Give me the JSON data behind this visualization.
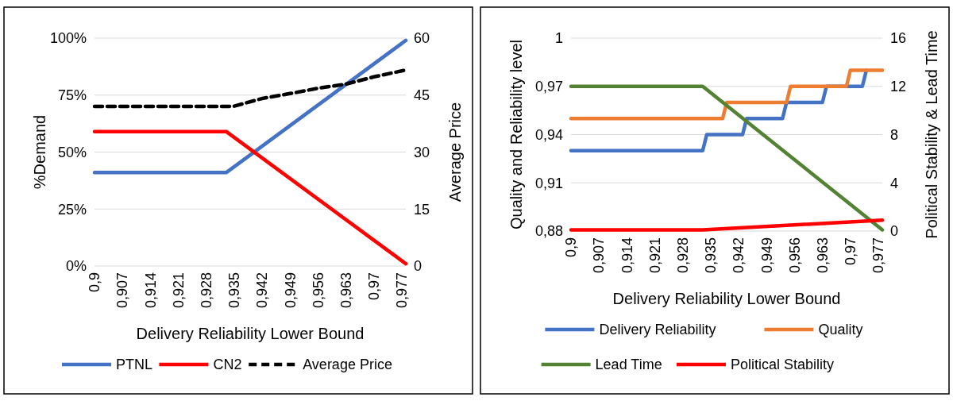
{
  "chart_data": [
    {
      "type": "line",
      "xlabel": "Delivery Reliability Lower Bound",
      "ylabel": "%Demand",
      "y2label": "Average Price",
      "xlim": [
        0.9,
        0.978
      ],
      "xticks": [
        {
          "value": 0.9,
          "label": "0,9"
        },
        {
          "value": 0.907,
          "label": "0,907"
        },
        {
          "value": 0.914,
          "label": "0,914"
        },
        {
          "value": 0.921,
          "label": "0,921"
        },
        {
          "value": 0.928,
          "label": "0,928"
        },
        {
          "value": 0.935,
          "label": "0,935"
        },
        {
          "value": 0.942,
          "label": "0,942"
        },
        {
          "value": 0.949,
          "label": "0,949"
        },
        {
          "value": 0.956,
          "label": "0,956"
        },
        {
          "value": 0.963,
          "label": "0,963"
        },
        {
          "value": 0.97,
          "label": "0,97"
        },
        {
          "value": 0.977,
          "label": "0,977"
        }
      ],
      "ylim": [
        0,
        100
      ],
      "yticks": [
        {
          "value": 0,
          "label": "0%"
        },
        {
          "value": 25,
          "label": "25%"
        },
        {
          "value": 50,
          "label": "50%"
        },
        {
          "value": 75,
          "label": "75%"
        },
        {
          "value": 100,
          "label": "100%"
        }
      ],
      "y2lim": [
        0,
        60
      ],
      "y2ticks": [
        0,
        15,
        30,
        45,
        60
      ],
      "grid": "y",
      "legend": "bottom",
      "series": [
        {
          "name": "PTNL",
          "color": "#4472c4",
          "x": [
            0.9,
            0.933,
            0.978
          ],
          "values": [
            41,
            41,
            99
          ]
        },
        {
          "name": "CN2",
          "color": "#ff0000",
          "x": [
            0.9,
            0.933,
            0.978
          ],
          "values": [
            59,
            59,
            1
          ]
        },
        {
          "name": "Average Price",
          "color": "#000000",
          "line_style": "dashed",
          "axis": "y2",
          "x": [
            0.9,
            0.933,
            0.935,
            0.942,
            0.949,
            0.956,
            0.963,
            0.97,
            0.978
          ],
          "values": [
            42,
            42,
            42.1,
            44.1,
            45.4,
            46.8,
            47.9,
            49.8,
            51.6
          ]
        }
      ]
    },
    {
      "type": "line",
      "xlabel": "Delivery Reliability Lower Bound",
      "ylabel": "Quality and Reliability level",
      "y2label": "Political Stability & Lead Time",
      "xlim": [
        0.9,
        0.978
      ],
      "xticks": [
        {
          "value": 0.9,
          "label": "0,9"
        },
        {
          "value": 0.907,
          "label": "0,907"
        },
        {
          "value": 0.914,
          "label": "0,914"
        },
        {
          "value": 0.921,
          "label": "0,921"
        },
        {
          "value": 0.928,
          "label": "0,928"
        },
        {
          "value": 0.935,
          "label": "0,935"
        },
        {
          "value": 0.942,
          "label": "0,942"
        },
        {
          "value": 0.949,
          "label": "0,949"
        },
        {
          "value": 0.956,
          "label": "0,956"
        },
        {
          "value": 0.963,
          "label": "0,963"
        },
        {
          "value": 0.97,
          "label": "0,97"
        },
        {
          "value": 0.977,
          "label": "0,977"
        }
      ],
      "ylim": [
        0.88,
        1
      ],
      "yticks": [
        {
          "value": 0.88,
          "label": "0,88"
        },
        {
          "value": 0.91,
          "label": "0,91"
        },
        {
          "value": 0.94,
          "label": "0,94"
        },
        {
          "value": 0.97,
          "label": "0,97"
        },
        1
      ],
      "y2lim": [
        0,
        16
      ],
      "y2ticks": [
        0,
        4,
        8,
        12,
        16
      ],
      "grid": "y",
      "legend": "bottom",
      "series": [
        {
          "name": "Delivery Reliability",
          "color": "#4472c4",
          "x": [
            0.9,
            0.933,
            0.934,
            0.943,
            0.944,
            0.953,
            0.954,
            0.963,
            0.964,
            0.973,
            0.974
          ],
          "values": [
            0.93,
            0.93,
            0.94,
            0.94,
            0.95,
            0.95,
            0.96,
            0.96,
            0.97,
            0.97,
            0.98
          ]
        },
        {
          "name": "Quality",
          "color": "#ed7d31",
          "x": [
            0.9,
            0.938,
            0.939,
            0.954,
            0.955,
            0.969,
            0.97,
            0.978
          ],
          "values": [
            0.95,
            0.95,
            0.96,
            0.96,
            0.97,
            0.97,
            0.98,
            0.98
          ]
        },
        {
          "name": "Lead Time",
          "color": "#548235",
          "axis": "y2",
          "x": [
            0.9,
            0.933,
            0.978
          ],
          "values": [
            12,
            12,
            0.1
          ]
        },
        {
          "name": "Political Stability",
          "color": "#ff0000",
          "axis": "y2",
          "x": [
            0.9,
            0.933,
            0.978
          ],
          "values": [
            0.1,
            0.1,
            0.9
          ]
        }
      ]
    }
  ]
}
